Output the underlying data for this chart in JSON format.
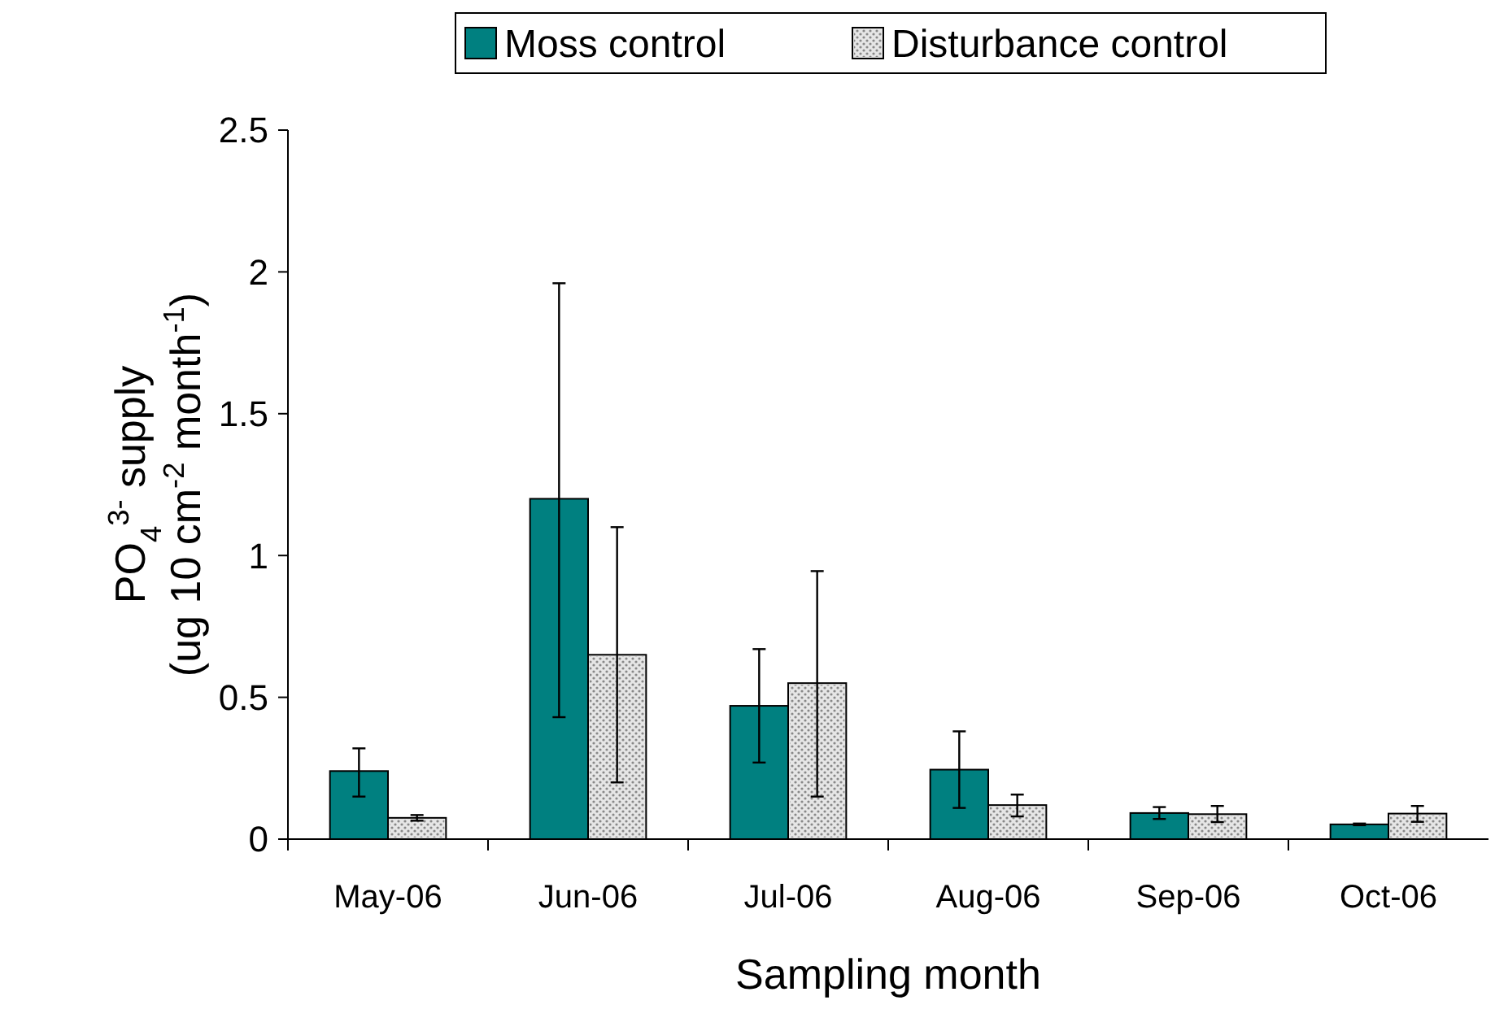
{
  "chart_data": {
    "type": "bar",
    "xlabel": "Sampling month",
    "ylabel": "PO$_{4}$$^{3-}$ supply\n(ug 10 cm$^{-2}$ month$^{-1}$)",
    "categories": [
      "May-06",
      "Jun-06",
      "Jul-06",
      "Aug-06",
      "Sep-06",
      "Oct-06"
    ],
    "series": [
      {
        "name": "Moss control",
        "color": "#008080",
        "values": [
          0.24,
          1.2,
          0.47,
          0.245,
          0.092,
          0.052
        ],
        "errors": [
          [
            0.15,
            0.32
          ],
          [
            0.43,
            1.96
          ],
          [
            0.27,
            0.67
          ],
          [
            0.11,
            0.38
          ],
          [
            0.071,
            0.113
          ],
          [
            0.049,
            0.055
          ]
        ]
      },
      {
        "name": "Disturbance control",
        "color": "#e6e6e6",
        "values": [
          0.075,
          0.65,
          0.55,
          0.12,
          0.088,
          0.09
        ],
        "errors": [
          [
            0.065,
            0.085
          ],
          [
            0.2,
            1.1
          ],
          [
            0.15,
            0.945
          ],
          [
            0.08,
            0.157
          ],
          [
            0.06,
            0.117
          ],
          [
            0.061,
            0.117
          ]
        ]
      }
    ],
    "ylim": [
      0,
      2.5
    ],
    "yticks": [
      0,
      0.5,
      1,
      1.5,
      2,
      2.5
    ],
    "grid": false,
    "legend": "top right"
  }
}
